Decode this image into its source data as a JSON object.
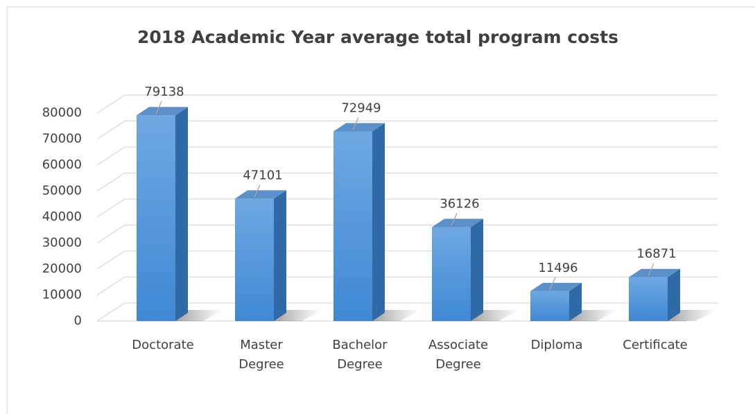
{
  "chart_data": {
    "type": "bar3d",
    "title": "2018 Academic Year average total program costs",
    "categories": [
      "Doctorate",
      "Master Degree",
      "Bachelor Degree",
      "Associate Degree",
      "Diploma",
      "Certificate"
    ],
    "values": [
      79138,
      47101,
      72949,
      36126,
      11496,
      16871
    ],
    "color": "#4a90d9",
    "ylim": [
      0,
      80000
    ],
    "yticks": [
      0,
      10000,
      20000,
      30000,
      40000,
      50000,
      60000,
      70000,
      80000
    ],
    "grid": true
  }
}
